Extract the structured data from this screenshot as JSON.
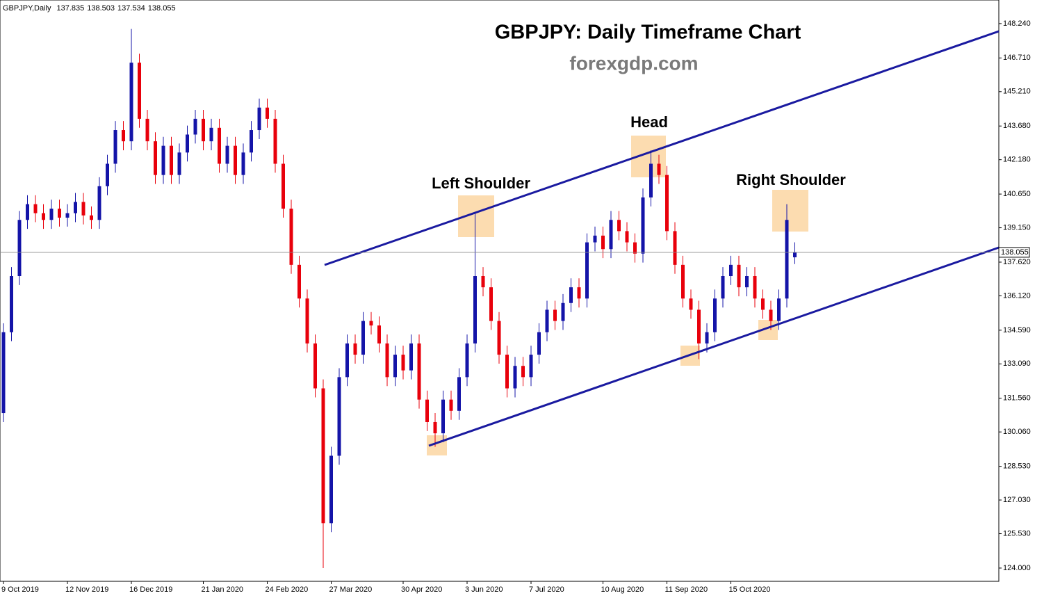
{
  "chart_data": {
    "type": "candlestick",
    "symbol": "GBPJPY,Daily",
    "title": "GBPJPY: Daily Timeframe Chart",
    "subtitle": "forexgdp.com",
    "annotations": [
      "Left Shoulder",
      "Head",
      "Right Shoulder"
    ],
    "up_color": "#1414a8",
    "down_color": "#e8000b",
    "categories": [
      "9 Oct 2019",
      null,
      null,
      null,
      null,
      null,
      null,
      null,
      "12 Nov 2019",
      null,
      null,
      null,
      null,
      null,
      null,
      null,
      "16 Dec 2019",
      null,
      null,
      null,
      null,
      null,
      null,
      null,
      null,
      "21 Jan 2020",
      null,
      null,
      null,
      null,
      null,
      null,
      null,
      "24 Feb 2020",
      null,
      null,
      null,
      null,
      null,
      null,
      null,
      "27 Mar 2020",
      null,
      null,
      null,
      null,
      null,
      null,
      null,
      null,
      "30 Apr 2020",
      null,
      null,
      null,
      null,
      null,
      null,
      null,
      "3 Jun 2020",
      null,
      null,
      null,
      null,
      null,
      null,
      null,
      "7 Jul 2020",
      null,
      null,
      null,
      null,
      null,
      null,
      null,
      null,
      "10 Aug 2020",
      null,
      null,
      null,
      null,
      null,
      null,
      null,
      "11 Sep 2020",
      null,
      null,
      null,
      null,
      null,
      null,
      null,
      "15 Oct 2020",
      null,
      null,
      null,
      null,
      null,
      null,
      null,
      null
    ],
    "open": [
      130.9,
      134.5,
      137,
      139.5,
      140.2,
      139.8,
      139.5,
      140,
      139.6,
      139.8,
      140.3,
      139.7,
      139.5,
      141,
      142,
      143.5,
      143,
      146.5,
      144,
      143,
      141.5,
      142.8,
      141.5,
      142.5,
      143.3,
      144,
      143,
      143.6,
      142,
      142.8,
      141.5,
      142.5,
      143.5,
      144.5,
      144,
      142,
      140,
      137.5,
      136,
      134,
      132,
      126,
      129,
      132.5,
      134,
      133.5,
      135,
      134.8,
      134,
      132.5,
      133.5,
      132.8,
      134,
      131.5,
      130.5,
      130,
      131.5,
      131,
      132.5,
      134,
      137,
      136.5,
      135,
      133.5,
      132,
      133,
      132.5,
      133.5,
      134.5,
      135.5,
      135,
      135.8,
      136.5,
      136,
      138.5,
      138.8,
      138.2,
      139.5,
      139,
      138.5,
      138,
      140.5,
      142,
      141.5,
      139,
      137.5,
      136,
      135.5,
      134,
      134.5,
      136,
      137,
      137.5,
      136.5,
      137,
      136,
      135.5,
      135,
      136,
      137.835
    ],
    "high": [
      134.9,
      137.4,
      139.9,
      140.6,
      140.6,
      140.2,
      140.4,
      140.4,
      140.2,
      140.7,
      140.7,
      140.1,
      141.4,
      142.4,
      143.9,
      143.9,
      148.0,
      146.9,
      144.4,
      143.4,
      143.2,
      143.2,
      142.9,
      143.7,
      144.4,
      144.4,
      144.0,
      144.0,
      143.2,
      143.2,
      142.9,
      143.9,
      144.9,
      144.9,
      144.4,
      142.4,
      140.4,
      137.9,
      136.4,
      134.4,
      132.4,
      129.4,
      132.9,
      134.4,
      134.4,
      135.4,
      135.4,
      135.2,
      134.4,
      133.9,
      133.9,
      134.4,
      134.4,
      131.9,
      130.9,
      131.9,
      131.9,
      132.9,
      134.4,
      139.8,
      137.4,
      136.9,
      135.4,
      133.9,
      133.4,
      133.4,
      133.9,
      134.9,
      135.9,
      135.9,
      136.2,
      136.9,
      136.9,
      138.9,
      139.2,
      139.2,
      139.9,
      139.9,
      139.4,
      138.9,
      140.9,
      142.6,
      142.4,
      141.9,
      139.4,
      137.9,
      136.4,
      135.9,
      134.9,
      136.4,
      137.4,
      137.9,
      137.9,
      137.4,
      137.4,
      136.4,
      135.9,
      136.4,
      140.2,
      138.503
    ],
    "low": [
      130.5,
      134.1,
      136.6,
      139.1,
      139.4,
      139.1,
      139.1,
      139.2,
      139.2,
      139.4,
      139.3,
      139.1,
      139.1,
      140.6,
      141.6,
      142.6,
      142.6,
      143.6,
      142.6,
      141.1,
      141.1,
      141.1,
      141.1,
      142.1,
      142.9,
      142.6,
      142.6,
      141.6,
      141.6,
      141.1,
      141.1,
      142.1,
      143.1,
      143.6,
      141.6,
      139.6,
      137.1,
      135.6,
      133.6,
      131.6,
      124.0,
      125.6,
      128.6,
      132.1,
      133.1,
      133.1,
      134.4,
      133.6,
      132.1,
      132.1,
      132.4,
      132.4,
      131.1,
      130.1,
      129.4,
      129.6,
      130.6,
      130.6,
      132.1,
      133.6,
      136.1,
      134.6,
      133.1,
      131.6,
      131.6,
      132.1,
      132.1,
      133.1,
      134.1,
      134.6,
      134.6,
      135.4,
      135.6,
      135.6,
      138.1,
      137.8,
      137.8,
      138.6,
      138.1,
      137.6,
      137.6,
      140.1,
      141.1,
      138.6,
      137.1,
      135.6,
      135.1,
      133.3,
      133.6,
      134.1,
      135.6,
      136.6,
      136.1,
      136.1,
      135.6,
      135.1,
      134.6,
      134.6,
      135.6,
      137.534
    ],
    "close": [
      134.5,
      137,
      139.5,
      140.2,
      139.8,
      139.5,
      140,
      139.6,
      139.8,
      140.3,
      139.7,
      139.5,
      141,
      142,
      143.5,
      143,
      146.5,
      144,
      143,
      141.5,
      142.8,
      141.5,
      142.5,
      143.3,
      144,
      143,
      143.6,
      142,
      142.8,
      141.5,
      142.5,
      143.5,
      144.5,
      144,
      142,
      140,
      137.5,
      136,
      134,
      132,
      126,
      129,
      132.5,
      134,
      133.5,
      135,
      134.8,
      134,
      132.5,
      133.5,
      132.8,
      134,
      131.5,
      130.5,
      130,
      131.5,
      131,
      132.5,
      134,
      137,
      136.5,
      135,
      133.5,
      132,
      133,
      132.5,
      133.5,
      134.5,
      135.5,
      135,
      135.8,
      136.5,
      136,
      138.5,
      138.8,
      138.2,
      139.5,
      139,
      138.5,
      138,
      140.5,
      142,
      141.5,
      139,
      137.5,
      136,
      135.5,
      134,
      134.5,
      136,
      137,
      137.5,
      136.5,
      137,
      136,
      135.5,
      135,
      136,
      139.5,
      138.055
    ],
    "ylim": [
      123.41,
      149.29
    ],
    "yticks": [
      {
        "value": 148.24,
        "label": "148.240"
      },
      {
        "value": 146.71,
        "label": "146.710"
      },
      {
        "value": 145.21,
        "label": "145.210"
      },
      {
        "value": 143.68,
        "label": "143.680"
      },
      {
        "value": 142.18,
        "label": "142.180"
      },
      {
        "value": 140.65,
        "label": "140.650"
      },
      {
        "value": 139.15,
        "label": "139.150"
      },
      {
        "value": 137.62,
        "label": "137.620"
      },
      {
        "value": 136.12,
        "label": "136.120"
      },
      {
        "value": 134.59,
        "label": "134.590"
      },
      {
        "value": 133.09,
        "label": "133.090"
      },
      {
        "value": 131.56,
        "label": "131.560"
      },
      {
        "value": 130.06,
        "label": "130.060"
      },
      {
        "value": 128.53,
        "label": "128.530"
      },
      {
        "value": 127.03,
        "label": "127.030"
      },
      {
        "value": 125.53,
        "label": "125.530"
      },
      {
        "value": 124.0,
        "label": "124.000"
      }
    ]
  }
}
